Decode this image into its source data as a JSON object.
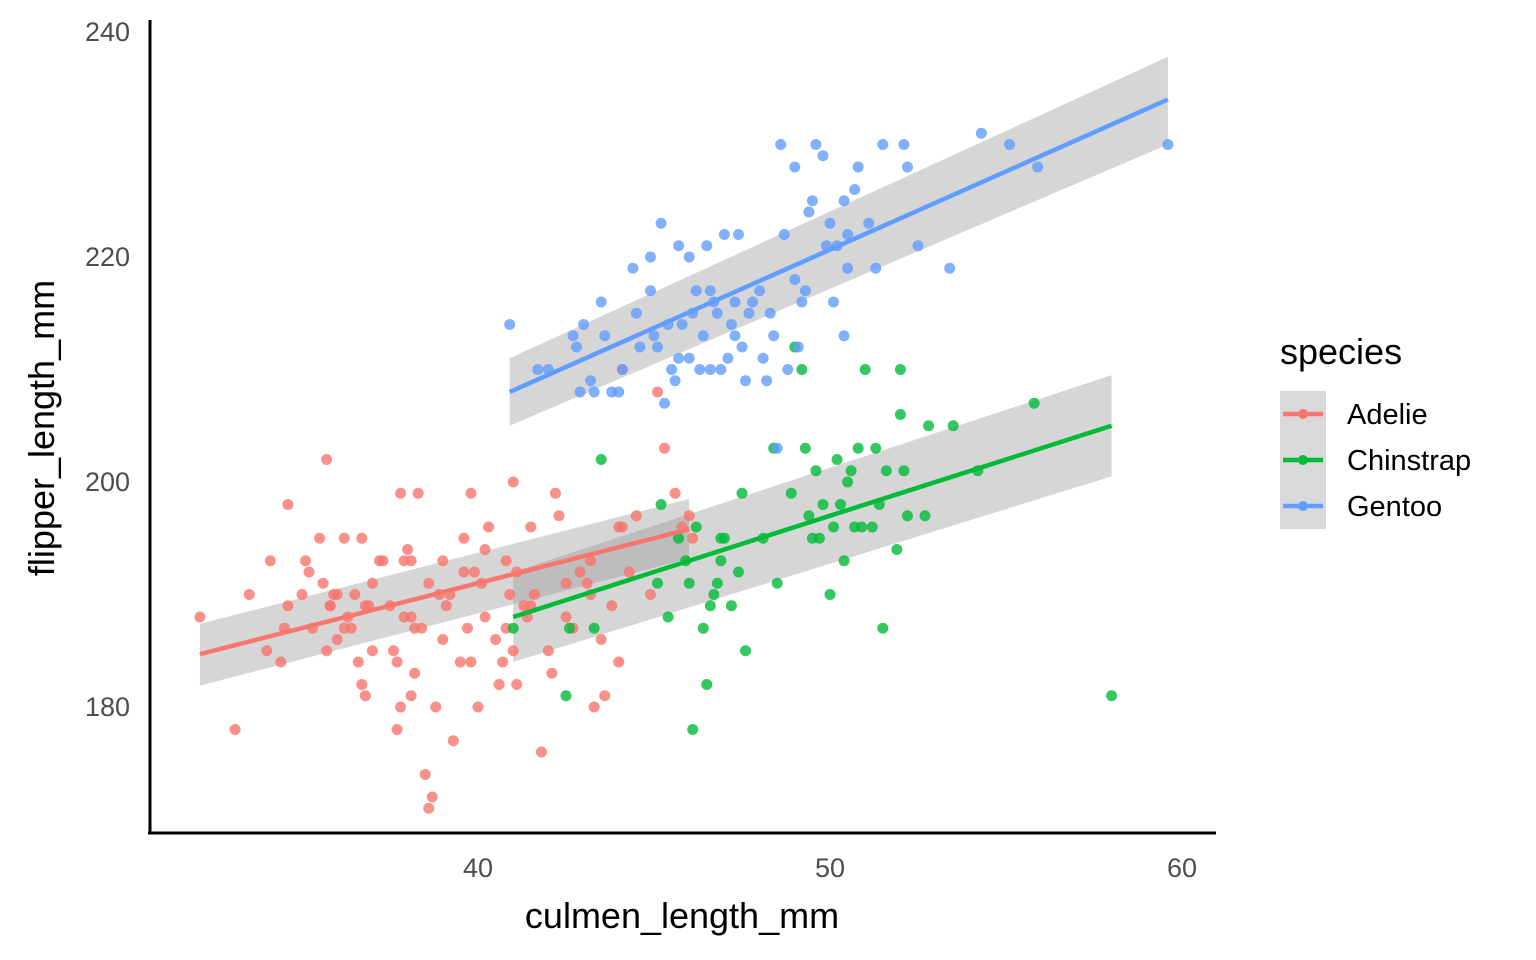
{
  "chart_data": {
    "type": "scatter",
    "title": "",
    "xlabel": "culmen_length_mm",
    "ylabel": "flipper_length_mm",
    "xlim": [
      31,
      61
    ],
    "ylim": [
      169,
      241
    ],
    "xticks": [
      40,
      50,
      60
    ],
    "yticks": [
      180,
      200,
      220,
      240
    ],
    "grid": false,
    "legend": {
      "title": "species",
      "placement": "right"
    },
    "series": [
      {
        "name": "Adelie",
        "color": "#F8766D",
        "trend": {
          "x": [
            32.1,
            46.0
          ],
          "y": [
            184.7,
            195.8
          ],
          "se_low": [
            181.9,
            193.2
          ],
          "se_high": [
            187.4,
            198.5
          ]
        },
        "points": [
          [
            32.1,
            188
          ],
          [
            33.1,
            178
          ],
          [
            33.5,
            190
          ],
          [
            34.0,
            185
          ],
          [
            34.1,
            193
          ],
          [
            34.4,
            184
          ],
          [
            34.5,
            187
          ],
          [
            34.6,
            198
          ],
          [
            34.6,
            189
          ],
          [
            35.0,
            190
          ],
          [
            35.1,
            193
          ],
          [
            35.2,
            192
          ],
          [
            35.3,
            187
          ],
          [
            35.5,
            195
          ],
          [
            35.6,
            191
          ],
          [
            35.7,
            202
          ],
          [
            35.7,
            185
          ],
          [
            35.8,
            189
          ],
          [
            35.9,
            190
          ],
          [
            36.0,
            190
          ],
          [
            36.0,
            186
          ],
          [
            36.2,
            187
          ],
          [
            36.2,
            195
          ],
          [
            36.4,
            187
          ],
          [
            36.5,
            190
          ],
          [
            36.6,
            184
          ],
          [
            36.7,
            195
          ],
          [
            36.7,
            182
          ],
          [
            36.8,
            181
          ],
          [
            36.9,
            189
          ],
          [
            37.0,
            185
          ],
          [
            37.2,
            193
          ],
          [
            37.3,
            193
          ],
          [
            37.5,
            189
          ],
          [
            37.6,
            185
          ],
          [
            37.7,
            184
          ],
          [
            37.7,
            178
          ],
          [
            37.8,
            180
          ],
          [
            37.8,
            199
          ],
          [
            37.9,
            188
          ],
          [
            38.0,
            194
          ],
          [
            38.1,
            193
          ],
          [
            38.1,
            188
          ],
          [
            38.1,
            181
          ],
          [
            38.2,
            183
          ],
          [
            38.3,
            199
          ],
          [
            38.5,
            174
          ],
          [
            38.6,
            171
          ],
          [
            38.7,
            172
          ],
          [
            38.8,
            180
          ],
          [
            38.9,
            190
          ],
          [
            39.0,
            186
          ],
          [
            39.1,
            189
          ],
          [
            39.2,
            190
          ],
          [
            39.3,
            177
          ],
          [
            39.5,
            184
          ],
          [
            39.6,
            195
          ],
          [
            39.7,
            187
          ],
          [
            39.8,
            199
          ],
          [
            39.9,
            192
          ],
          [
            40.0,
            180
          ],
          [
            40.1,
            191
          ],
          [
            40.2,
            188
          ],
          [
            40.3,
            196
          ],
          [
            40.5,
            186
          ],
          [
            40.6,
            182
          ],
          [
            40.7,
            184
          ],
          [
            40.8,
            193
          ],
          [
            40.9,
            190
          ],
          [
            41.0,
            200
          ],
          [
            41.1,
            182
          ],
          [
            41.1,
            192
          ],
          [
            41.3,
            189
          ],
          [
            41.4,
            188
          ],
          [
            41.5,
            196
          ],
          [
            41.6,
            190
          ],
          [
            41.8,
            176
          ],
          [
            42.0,
            185
          ],
          [
            42.1,
            183
          ],
          [
            42.2,
            199
          ],
          [
            42.3,
            197
          ],
          [
            42.5,
            191
          ],
          [
            42.7,
            187
          ],
          [
            42.9,
            192
          ],
          [
            43.1,
            191
          ],
          [
            43.2,
            190
          ],
          [
            43.3,
            180
          ],
          [
            43.5,
            186
          ],
          [
            43.6,
            181
          ],
          [
            43.8,
            189
          ],
          [
            44.0,
            184
          ],
          [
            44.1,
            210
          ],
          [
            44.1,
            196
          ],
          [
            44.3,
            192
          ],
          [
            44.5,
            197
          ],
          [
            44.9,
            190
          ],
          [
            45.1,
            208
          ],
          [
            45.3,
            203
          ],
          [
            45.6,
            199
          ],
          [
            45.8,
            196
          ],
          [
            46.0,
            197
          ],
          [
            46.1,
            195
          ],
          [
            41.0,
            185
          ],
          [
            39.6,
            192
          ],
          [
            38.6,
            191
          ],
          [
            37.9,
            193
          ],
          [
            36.3,
            188
          ],
          [
            40.8,
            187
          ],
          [
            42.5,
            188
          ],
          [
            39.8,
            184
          ],
          [
            38.4,
            187
          ],
          [
            37.0,
            191
          ],
          [
            35.8,
            189
          ],
          [
            40.2,
            194
          ],
          [
            41.5,
            189
          ],
          [
            43.2,
            193
          ],
          [
            44.0,
            196
          ],
          [
            39.0,
            193
          ],
          [
            38.2,
            187
          ],
          [
            36.8,
            189
          ]
        ]
      },
      {
        "name": "Chinstrap",
        "color": "#00BA38",
        "trend": {
          "x": [
            41.0,
            58.0
          ],
          "y": [
            188.0,
            205.0
          ],
          "se_low": [
            184.0,
            200.5
          ],
          "se_high": [
            192.0,
            209.5
          ]
        },
        "points": [
          [
            41.0,
            187
          ],
          [
            42.5,
            181
          ],
          [
            42.6,
            187
          ],
          [
            43.3,
            187
          ],
          [
            43.5,
            202
          ],
          [
            45.1,
            191
          ],
          [
            45.4,
            188
          ],
          [
            45.7,
            195
          ],
          [
            45.9,
            193
          ],
          [
            46.0,
            191
          ],
          [
            46.1,
            178
          ],
          [
            46.4,
            187
          ],
          [
            46.5,
            182
          ],
          [
            46.6,
            189
          ],
          [
            46.7,
            190
          ],
          [
            46.8,
            191
          ],
          [
            46.9,
            193
          ],
          [
            47.0,
            195
          ],
          [
            47.2,
            189
          ],
          [
            47.4,
            192
          ],
          [
            47.6,
            185
          ],
          [
            48.1,
            195
          ],
          [
            48.5,
            191
          ],
          [
            48.9,
            199
          ],
          [
            49.0,
            212
          ],
          [
            49.2,
            210
          ],
          [
            49.3,
            203
          ],
          [
            49.5,
            195
          ],
          [
            49.6,
            201
          ],
          [
            49.8,
            198
          ],
          [
            50.0,
            190
          ],
          [
            50.1,
            196
          ],
          [
            50.2,
            202
          ],
          [
            50.3,
            198
          ],
          [
            50.4,
            193
          ],
          [
            50.6,
            201
          ],
          [
            50.8,
            203
          ],
          [
            50.9,
            196
          ],
          [
            51.0,
            210
          ],
          [
            51.3,
            203
          ],
          [
            51.4,
            198
          ],
          [
            51.5,
            187
          ],
          [
            51.6,
            201
          ],
          [
            51.9,
            194
          ],
          [
            52.0,
            206
          ],
          [
            52.1,
            201
          ],
          [
            52.2,
            197
          ],
          [
            52.7,
            197
          ],
          [
            52.8,
            205
          ],
          [
            53.5,
            205
          ],
          [
            54.2,
            201
          ],
          [
            55.8,
            207
          ],
          [
            58.0,
            181
          ],
          [
            45.2,
            198
          ],
          [
            46.2,
            196
          ],
          [
            47.5,
            199
          ],
          [
            48.4,
            203
          ],
          [
            49.4,
            197
          ],
          [
            50.5,
            200
          ],
          [
            51.2,
            196
          ],
          [
            52.0,
            210
          ],
          [
            46.9,
            195
          ],
          [
            49.7,
            195
          ],
          [
            50.7,
            196
          ]
        ]
      },
      {
        "name": "Gentoo",
        "color": "#619CFF",
        "trend": {
          "x": [
            40.9,
            59.6
          ],
          "y": [
            208.0,
            234.0
          ],
          "se_low": [
            205.0,
            230.0
          ],
          "se_high": [
            211.0,
            237.8
          ]
        },
        "points": [
          [
            40.9,
            214
          ],
          [
            41.7,
            210
          ],
          [
            42.0,
            210
          ],
          [
            42.7,
            213
          ],
          [
            42.9,
            208
          ],
          [
            43.2,
            209
          ],
          [
            43.3,
            208
          ],
          [
            43.5,
            216
          ],
          [
            43.6,
            213
          ],
          [
            43.8,
            208
          ],
          [
            44.0,
            208
          ],
          [
            44.4,
            219
          ],
          [
            44.5,
            215
          ],
          [
            44.9,
            220
          ],
          [
            45.1,
            212
          ],
          [
            45.2,
            223
          ],
          [
            45.4,
            214
          ],
          [
            45.5,
            210
          ],
          [
            45.6,
            209
          ],
          [
            45.7,
            211
          ],
          [
            45.8,
            214
          ],
          [
            46.0,
            220
          ],
          [
            46.1,
            215
          ],
          [
            46.2,
            217
          ],
          [
            46.3,
            210
          ],
          [
            46.4,
            213
          ],
          [
            46.5,
            221
          ],
          [
            46.6,
            217
          ],
          [
            46.7,
            216
          ],
          [
            46.8,
            215
          ],
          [
            46.9,
            210
          ],
          [
            47.0,
            222
          ],
          [
            47.2,
            214
          ],
          [
            47.4,
            222
          ],
          [
            47.5,
            212
          ],
          [
            47.6,
            209
          ],
          [
            47.7,
            215
          ],
          [
            47.8,
            216
          ],
          [
            48.1,
            211
          ],
          [
            48.2,
            209
          ],
          [
            48.4,
            213
          ],
          [
            48.5,
            203
          ],
          [
            48.6,
            230
          ],
          [
            48.7,
            222
          ],
          [
            48.8,
            210
          ],
          [
            49.0,
            228
          ],
          [
            49.1,
            212
          ],
          [
            49.2,
            216
          ],
          [
            49.3,
            217
          ],
          [
            49.4,
            224
          ],
          [
            49.5,
            225
          ],
          [
            49.6,
            230
          ],
          [
            49.8,
            229
          ],
          [
            49.9,
            221
          ],
          [
            50.0,
            223
          ],
          [
            50.1,
            216
          ],
          [
            50.2,
            221
          ],
          [
            50.4,
            225
          ],
          [
            50.5,
            222
          ],
          [
            50.7,
            226
          ],
          [
            50.8,
            228
          ],
          [
            51.1,
            223
          ],
          [
            51.3,
            219
          ],
          [
            51.5,
            230
          ],
          [
            52.1,
            230
          ],
          [
            52.2,
            228
          ],
          [
            52.5,
            221
          ],
          [
            53.4,
            219
          ],
          [
            54.3,
            231
          ],
          [
            55.1,
            230
          ],
          [
            55.9,
            228
          ],
          [
            59.6,
            230
          ],
          [
            44.1,
            210
          ],
          [
            45.3,
            207
          ],
          [
            46.6,
            210
          ],
          [
            47.3,
            213
          ],
          [
            48.0,
            217
          ],
          [
            50.4,
            213
          ],
          [
            43.0,
            214
          ],
          [
            44.6,
            212
          ],
          [
            45.0,
            213
          ],
          [
            46.0,
            211
          ],
          [
            47.1,
            211
          ],
          [
            48.3,
            215
          ],
          [
            49.0,
            218
          ],
          [
            50.5,
            219
          ],
          [
            42.8,
            212
          ],
          [
            44.9,
            217
          ],
          [
            45.7,
            221
          ],
          [
            47.3,
            216
          ]
        ]
      }
    ]
  }
}
